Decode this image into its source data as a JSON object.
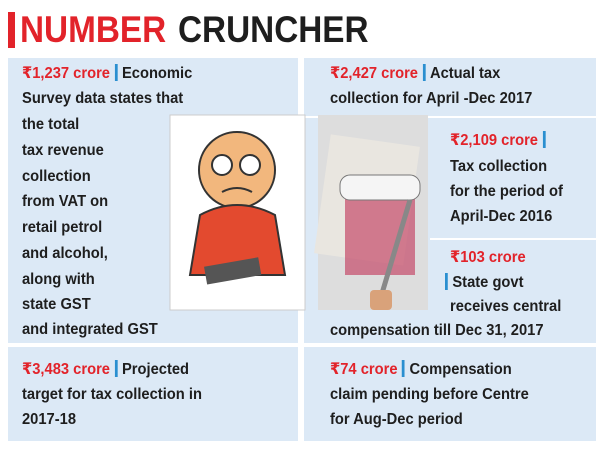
{
  "header": {
    "title_part1": "NUMBER",
    "title_part2": "CRUNCHER"
  },
  "items": [
    {
      "figure": "₹1,237 crore",
      "lines": [
        "Economic",
        "Survey data states that",
        "the total",
        "tax revenue",
        "collection",
        "from VAT on",
        "retail petrol",
        "and alcohol,",
        "along with",
        "state GST",
        "and integrated GST"
      ]
    },
    {
      "figure": "₹3,483 crore",
      "lines": [
        "Projected",
        "target for tax collection in",
        "2017-18"
      ]
    },
    {
      "figure": "₹2,427 crore",
      "lines": [
        "Actual tax",
        "collection for April -Dec 2017"
      ]
    },
    {
      "figure": "₹2,109 crore",
      "lines": [
        "Tax collection",
        "for the period of",
        "April-Dec 2016"
      ]
    },
    {
      "figure": "₹103 crore",
      "lines": [
        "State govt",
        "receives central",
        "compensation till Dec 31, 2017"
      ]
    },
    {
      "figure": "₹74 crore",
      "lines": [
        "Compensation",
        "claim pending before Centre",
        "for Aug-Dec period"
      ]
    }
  ]
}
